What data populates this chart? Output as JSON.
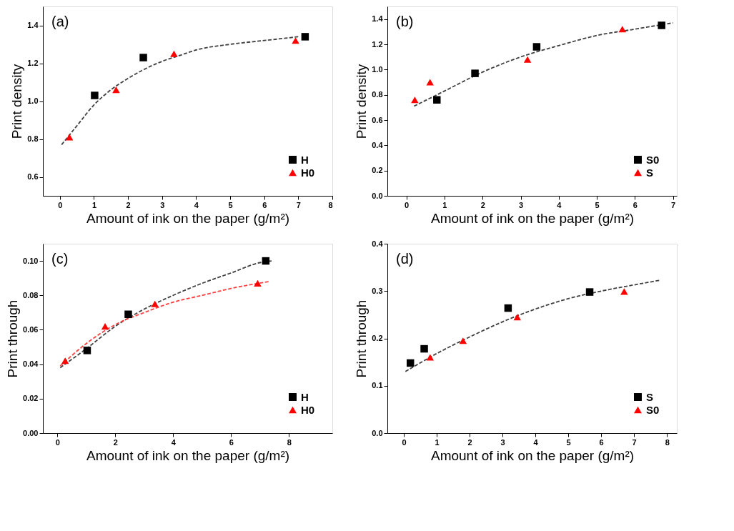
{
  "chart_data": [
    {
      "type": "scatter",
      "xlabel": "Amount of ink on the paper (g/m²)",
      "ylabel": "Print density",
      "annotations": [
        "(a)"
      ],
      "xlim": [
        -0.5,
        8
      ],
      "ylim": [
        0.5,
        1.5
      ],
      "xticks": [
        0,
        1,
        2,
        3,
        4,
        5,
        6,
        7,
        8
      ],
      "yticks": [
        0.6,
        0.8,
        {
          "value": 1.0,
          "label": "1.0"
        },
        1.2,
        1.4
      ],
      "grid": false,
      "legend": "bottom right",
      "series": [
        {
          "name": "H",
          "color": "#000000",
          "marker": "square",
          "x": [
            1.02,
            2.45,
            7.2
          ],
          "values": [
            1.03,
            1.23,
            1.34
          ]
        },
        {
          "name": "H0",
          "color": "#ff0000",
          "marker": "triangle",
          "x": [
            0.28,
            1.65,
            3.35,
            6.92
          ],
          "values": [
            0.81,
            1.06,
            1.25,
            1.32
          ]
        },
        {
          "type": "line",
          "color": "#404040",
          "marker": "none",
          "line_style": "dashed",
          "x": [
            0.05,
            0.5,
            1,
            1.5,
            2,
            2.5,
            3,
            3.5,
            4,
            5,
            6,
            7
          ],
          "values": [
            0.77,
            0.87,
            0.98,
            1.06,
            1.12,
            1.17,
            1.21,
            1.24,
            1.27,
            1.3,
            1.32,
            1.34
          ]
        }
      ]
    },
    {
      "type": "scatter",
      "xlabel": "Amount of ink on the paper (g/m²)",
      "ylabel": "Print density",
      "annotations": [
        "(b)"
      ],
      "xlim": [
        -0.5,
        7.1
      ],
      "ylim": [
        0,
        1.5
      ],
      "xticks": [
        0,
        1,
        2,
        3,
        4,
        5,
        6,
        7
      ],
      "yticks": [
        {
          "value": 0,
          "label": "0.0"
        },
        0.2,
        0.4,
        0.6,
        0.8,
        {
          "value": 1.0,
          "label": "1.0"
        },
        1.2,
        1.4
      ],
      "grid": false,
      "legend": "bottom right",
      "series": [
        {
          "name": "S0",
          "color": "#000000",
          "marker": "square",
          "x": [
            0.8,
            1.8,
            3.42,
            6.7
          ],
          "values": [
            0.76,
            0.97,
            1.18,
            1.35
          ]
        },
        {
          "name": "S",
          "color": "#ff0000",
          "marker": "triangle",
          "x": [
            0.22,
            0.62,
            3.18,
            5.67
          ],
          "values": [
            0.76,
            0.9,
            1.08,
            1.32
          ]
        },
        {
          "type": "line",
          "color": "#404040",
          "marker": "none",
          "line_style": "dashed",
          "x": [
            0.2,
            1,
            2,
            3,
            4,
            5,
            6,
            7
          ],
          "values": [
            0.71,
            0.83,
            0.98,
            1.1,
            1.19,
            1.27,
            1.32,
            1.37
          ]
        }
      ]
    },
    {
      "type": "scatter",
      "xlabel": "Amount of ink on the paper (g/m²)",
      "ylabel": "Print through",
      "annotations": [
        "(c)"
      ],
      "xlim": [
        -0.5,
        9.5
      ],
      "ylim": [
        0,
        0.11
      ],
      "xticks": [
        0,
        2,
        4,
        6,
        8
      ],
      "yticks": [
        {
          "value": 0,
          "label": "0.00"
        },
        0.02,
        0.04,
        0.06,
        0.08,
        {
          "value": 0.1,
          "label": "0.10"
        }
      ],
      "grid": false,
      "legend": "bottom right",
      "series": [
        {
          "name": "H",
          "color": "#000000",
          "marker": "square",
          "x": [
            1.03,
            2.45,
            7.2
          ],
          "values": [
            0.048,
            0.069,
            0.1
          ]
        },
        {
          "name": "H0",
          "color": "#ff0000",
          "marker": "triangle",
          "x": [
            0.27,
            1.65,
            3.37,
            6.92
          ],
          "values": [
            0.042,
            0.062,
            0.075,
            0.087
          ]
        },
        {
          "type": "line",
          "color": "#404040",
          "marker": "none",
          "line_style": "dashed",
          "x": [
            0.1,
            1,
            2,
            3,
            4,
            5,
            6,
            7,
            7.4
          ],
          "values": [
            0.038,
            0.049,
            0.062,
            0.072,
            0.08,
            0.087,
            0.093,
            0.099,
            0.1
          ]
        },
        {
          "type": "line",
          "color": "#ff4040",
          "marker": "none",
          "line_style": "dashed",
          "x": [
            0.1,
            1,
            2,
            3,
            4,
            5,
            6,
            7.3
          ],
          "values": [
            0.039,
            0.052,
            0.063,
            0.07,
            0.076,
            0.08,
            0.084,
            0.088
          ]
        }
      ]
    },
    {
      "type": "scatter",
      "xlabel": "Amount of ink on the paper (g/m²)",
      "ylabel": "Print through",
      "annotations": [
        "(d)"
      ],
      "xlim": [
        -0.5,
        8.3
      ],
      "ylim": [
        0,
        0.4
      ],
      "xticks": [
        0,
        1,
        2,
        3,
        4,
        5,
        6,
        7,
        8
      ],
      "yticks": [
        {
          "value": 0,
          "label": "0.0"
        },
        0.1,
        0.2,
        0.3,
        0.4
      ],
      "grid": false,
      "legend": "bottom right",
      "series": [
        {
          "name": "S",
          "color": "#000000",
          "marker": "square",
          "x": [
            0.2,
            0.62,
            3.17,
            5.65
          ],
          "values": [
            0.148,
            0.178,
            0.264,
            0.298
          ]
        },
        {
          "name": "S0",
          "color": "#ff0000",
          "marker": "triangle",
          "x": [
            0.8,
            1.8,
            3.45,
            6.7
          ],
          "values": [
            0.16,
            0.195,
            0.245,
            0.299
          ]
        },
        {
          "type": "line",
          "color": "#404040",
          "marker": "none",
          "line_style": "dashed",
          "x": [
            0.05,
            1,
            2,
            3,
            4,
            5,
            6,
            7,
            7.8
          ],
          "values": [
            0.13,
            0.168,
            0.203,
            0.235,
            0.262,
            0.284,
            0.3,
            0.313,
            0.323
          ]
        }
      ]
    }
  ]
}
